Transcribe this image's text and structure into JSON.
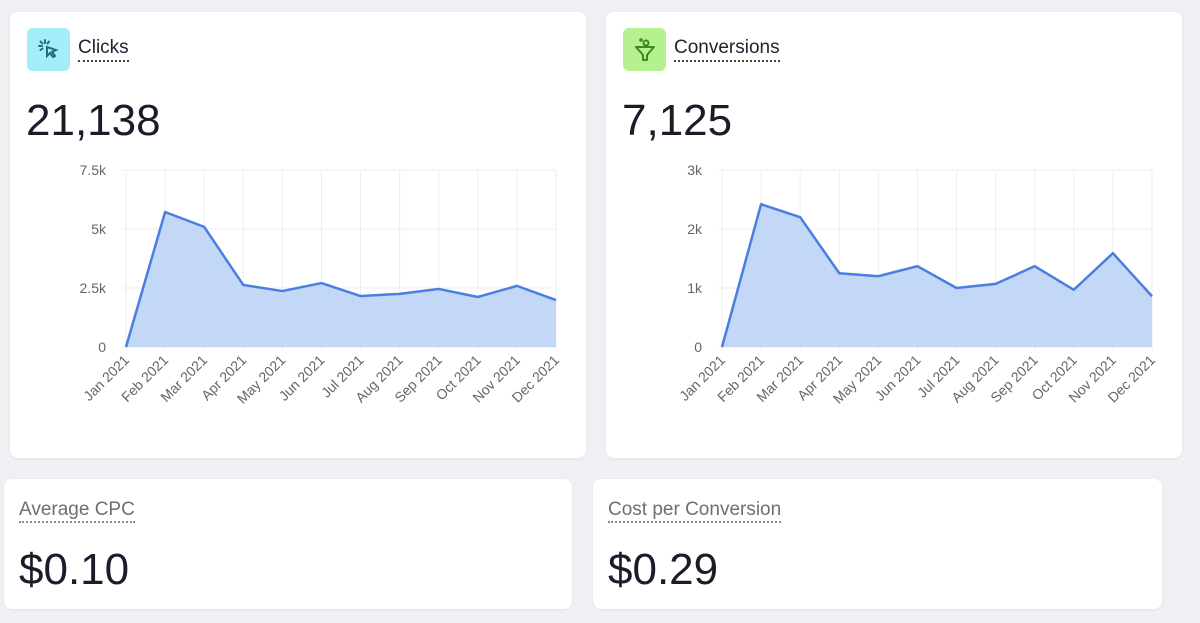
{
  "cards": [
    {
      "title": "Clicks",
      "value": "21,138",
      "icon": "cursor-click-icon",
      "icon_bg": "#a5ecfa",
      "icon_color": "#1d6f7f"
    },
    {
      "title": "Conversions",
      "value": "7,125",
      "icon": "funnel-icon",
      "icon_bg": "#b5f28f",
      "icon_color": "#3b8a1e"
    }
  ],
  "small_cards": [
    {
      "title": "Average CPC",
      "value": "$0.10"
    },
    {
      "title": "Cost per Conversion",
      "value": "$0.29"
    }
  ],
  "chart_data": [
    {
      "type": "area",
      "title": "Clicks",
      "categories": [
        "Jan 2021",
        "Feb 2021",
        "Mar 2021",
        "Apr 2021",
        "May 2021",
        "Jun 2021",
        "Jul 2021",
        "Aug 2021",
        "Sep 2021",
        "Oct 2021",
        "Nov 2021",
        "Dec 2021"
      ],
      "values": [
        0,
        5720,
        5090,
        2630,
        2370,
        2710,
        2160,
        2250,
        2460,
        2120,
        2590,
        1990
      ],
      "ylim": [
        0,
        7500
      ],
      "yticks": [
        0,
        2500,
        5000,
        7500
      ],
      "ytick_labels": [
        "0",
        "2.5k",
        "5k",
        "7.5k"
      ],
      "grid": true,
      "color": "#4a7ee0",
      "fill": "#c0d5f5"
    },
    {
      "type": "area",
      "title": "Conversions",
      "categories": [
        "Jan 2021",
        "Feb 2021",
        "Mar 2021",
        "Apr 2021",
        "May 2021",
        "Jun 2021",
        "Jul 2021",
        "Aug 2021",
        "Sep 2021",
        "Oct 2021",
        "Nov 2021",
        "Dec 2021"
      ],
      "values": [
        0,
        2420,
        2200,
        1250,
        1200,
        1370,
        1000,
        1070,
        1370,
        970,
        1590,
        860
      ],
      "ylim": [
        0,
        3000
      ],
      "yticks": [
        0,
        1000,
        2000,
        3000
      ],
      "ytick_labels": [
        "0",
        "1k",
        "2k",
        "3k"
      ],
      "grid": true,
      "color": "#4a7ee0",
      "fill": "#c0d5f5"
    }
  ]
}
